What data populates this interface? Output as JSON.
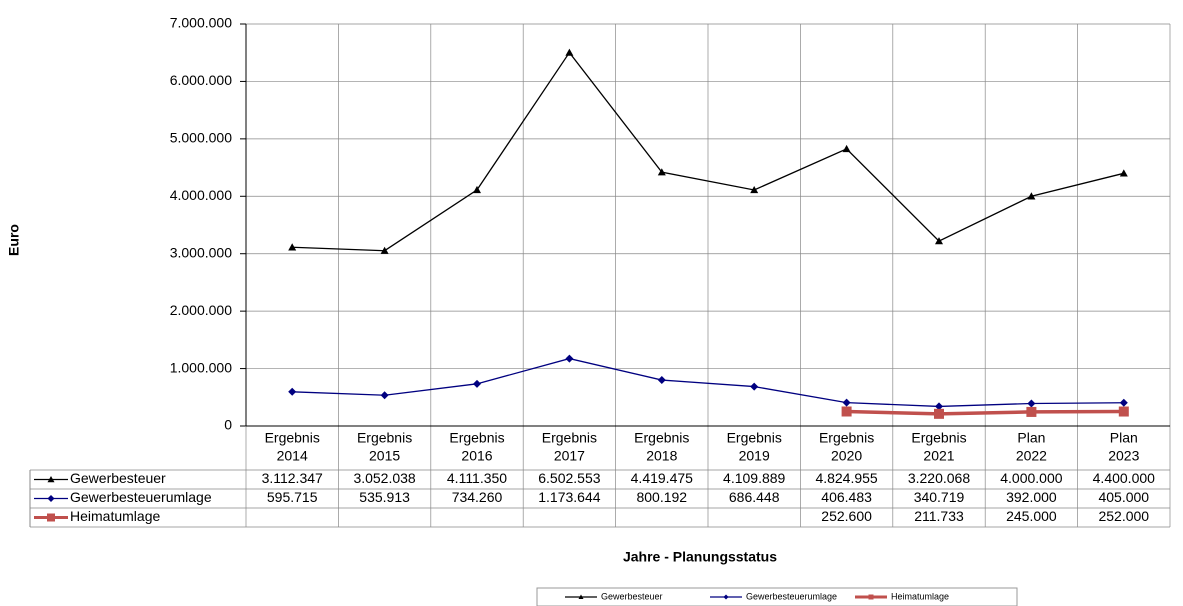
{
  "chart_data": {
    "type": "line",
    "y_axis_label": "Euro",
    "x_axis_label": "Jahre - Planungsstatus",
    "categories": [
      [
        "Ergebnis",
        "2014"
      ],
      [
        "Ergebnis",
        "2015"
      ],
      [
        "Ergebnis",
        "2016"
      ],
      [
        "Ergebnis",
        "2017"
      ],
      [
        "Ergebnis",
        "2018"
      ],
      [
        "Ergebnis",
        "2019"
      ],
      [
        "Ergebnis",
        "2020"
      ],
      [
        "Ergebnis",
        "2021"
      ],
      [
        "Plan",
        "2022"
      ],
      [
        "Plan",
        "2023"
      ]
    ],
    "ylim": [
      0,
      7000000
    ],
    "yticks": [
      0,
      {
        "value": 1000000,
        "label": "1.000.000"
      },
      {
        "value": 2000000,
        "label": "2.000.000"
      },
      {
        "value": 3000000,
        "label": "3.000.000"
      },
      {
        "value": 4000000,
        "label": "4.000.000"
      },
      {
        "value": 5000000,
        "label": "5.000.000"
      },
      {
        "value": 6000000,
        "label": "6.000.000"
      },
      {
        "value": 7000000,
        "label": "7.000.000"
      }
    ],
    "grid": true,
    "series": [
      {
        "name": "Gewerbesteuer",
        "color": "#000000",
        "marker": "triangle",
        "values": [
          3112347,
          3052038,
          4111350,
          6502553,
          4419475,
          4109889,
          4824955,
          3220068,
          4000000,
          4400000
        ],
        "value_labels": [
          "3.112.347",
          "3.052.038",
          "4.111.350",
          "6.502.553",
          "4.419.475",
          "4.109.889",
          "4.824.955",
          "3.220.068",
          "4.000.000",
          "4.400.000"
        ]
      },
      {
        "name": "Gewerbesteuerumlage",
        "color": "#000080",
        "marker": "diamond",
        "values": [
          595715,
          535913,
          734260,
          1173644,
          800192,
          686448,
          406483,
          340719,
          392000,
          405000
        ],
        "value_labels": [
          "595.715",
          "535.913",
          "734.260",
          "1.173.644",
          "800.192",
          "686.448",
          "406.483",
          "340.719",
          "392.000",
          "405.000"
        ]
      },
      {
        "name": "Heimatumlage",
        "color": "#c0504d",
        "marker": "square",
        "values": [
          null,
          null,
          null,
          null,
          null,
          null,
          252600,
          211733,
          245000,
          252000
        ],
        "value_labels": [
          null,
          null,
          null,
          null,
          null,
          null,
          "252.600",
          "211.733",
          "245.000",
          "252.000"
        ]
      }
    ]
  }
}
